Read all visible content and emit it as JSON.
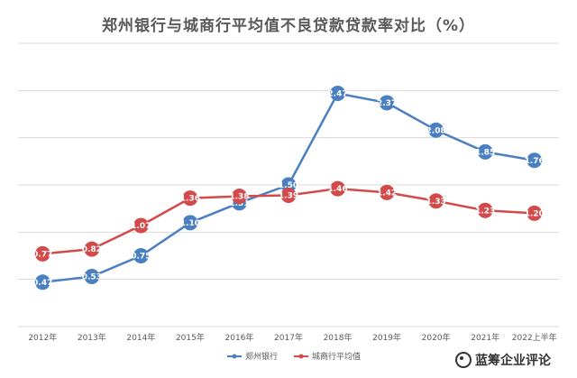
{
  "chart_data": {
    "type": "line",
    "title": "郑州银行与城商行平均值不良贷款贷款率对比（%）",
    "categories": [
      "2012年",
      "2013年",
      "2014年",
      "2015年",
      "2016年",
      "2017年",
      "2018年",
      "2019年",
      "2020年",
      "2021年",
      "2022上半年"
    ],
    "series": [
      {
        "name": "郑州银行",
        "color": "#4a7fc1",
        "values": [
          0.47,
          0.53,
          0.75,
          1.1,
          1.31,
          1.5,
          2.47,
          2.37,
          2.08,
          1.85,
          1.76
        ],
        "labels": [
          "0.47",
          "0.53",
          "0.75",
          "1.10",
          "1.31",
          "1.50",
          "2.47",
          "2.37",
          "2.08",
          "1.85",
          "1.76"
        ]
      },
      {
        "name": "城商行平均值",
        "color": "#d24a4a",
        "values": [
          0.77,
          0.82,
          1.07,
          1.36,
          1.38,
          1.39,
          1.46,
          1.42,
          1.33,
          1.23,
          1.2
        ],
        "labels": [
          "0.77",
          "0.82",
          "1.07",
          "1.36",
          "1.38",
          "1.39",
          "1.46",
          "1.42",
          "1.33",
          "1.23",
          "1.20"
        ]
      }
    ],
    "ylim": [
      0,
      3.0
    ],
    "grid": true,
    "legend": "bottom"
  },
  "watermark": {
    "text": "蓝筹企业评论",
    "icon": "watermark-logo-icon"
  }
}
